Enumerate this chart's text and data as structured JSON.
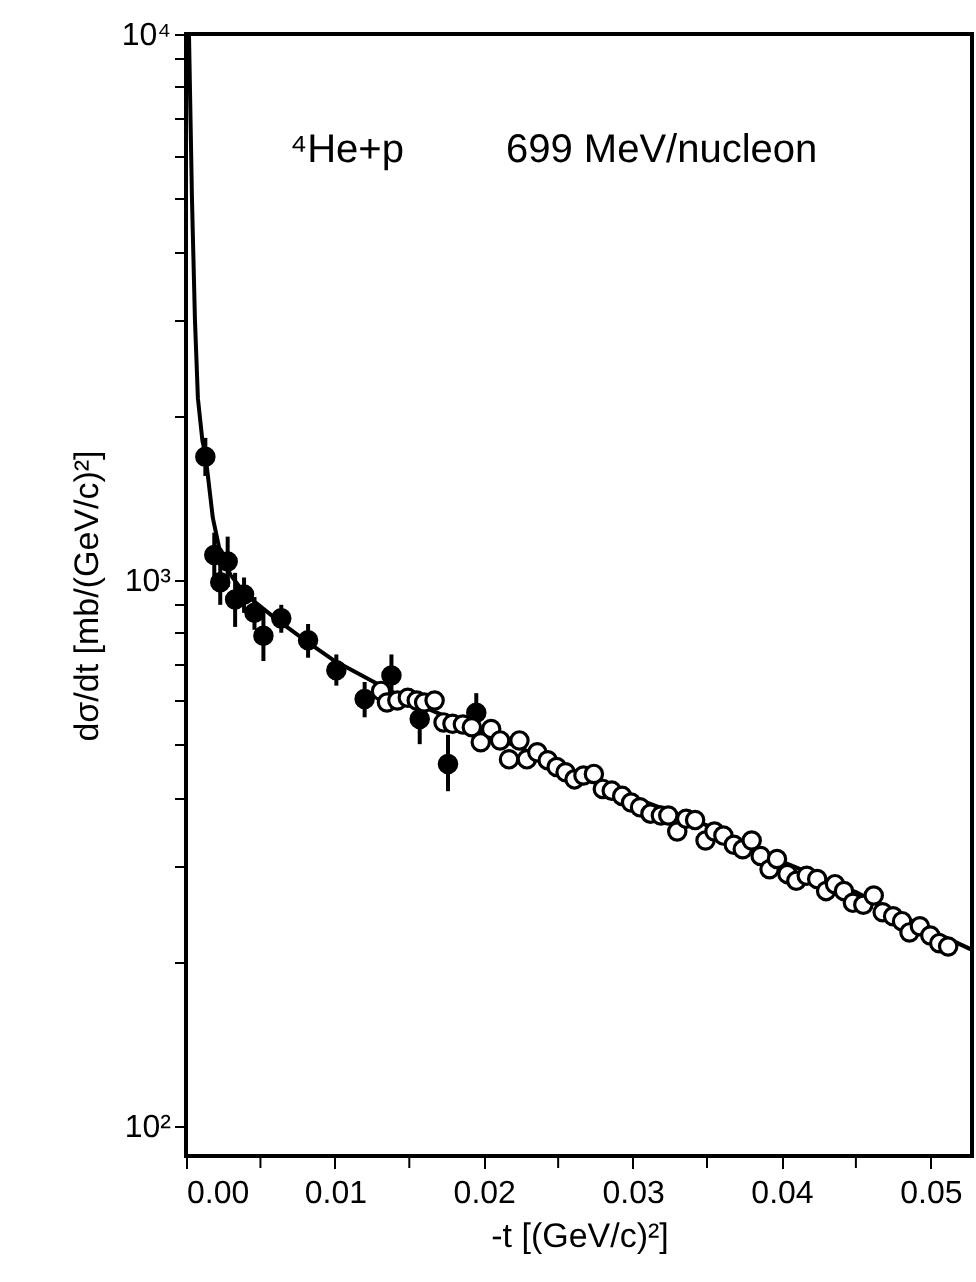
{
  "chart_data": {
    "type": "scatter",
    "xlabel": "-t  [(GeV/c)²]",
    "ylabel": "dσ/dt  [mb/(GeV/c)²]",
    "annotations": [
      "⁴He+p",
      "699 MeV/nucleon"
    ],
    "xlim": [
      0,
      0.0528
    ],
    "ylim": [
      88,
      10000
    ],
    "log": "y",
    "xticks": [
      {
        "value": 0,
        "label": "0.00"
      },
      {
        "value": 0.005,
        "label": null
      },
      {
        "value": 0.01,
        "label": "0.01"
      },
      {
        "value": 0.015,
        "label": null
      },
      {
        "value": 0.02,
        "label": "0.02"
      },
      {
        "value": 0.025,
        "label": null
      },
      {
        "value": 0.03,
        "label": "0.03"
      },
      {
        "value": 0.035,
        "label": null
      },
      {
        "value": 0.04,
        "label": "0.04"
      },
      {
        "value": 0.045,
        "label": null
      },
      {
        "value": 0.05,
        "label": "0.05"
      }
    ],
    "yticks": [
      {
        "value": 100,
        "label": "10²"
      },
      {
        "value": 200,
        "label": null
      },
      {
        "value": 300,
        "label": null
      },
      {
        "value": 400,
        "label": null
      },
      {
        "value": 500,
        "label": null
      },
      {
        "value": 600,
        "label": null
      },
      {
        "value": 700,
        "label": null
      },
      {
        "value": 800,
        "label": null
      },
      {
        "value": 900,
        "label": null
      },
      {
        "value": 1000,
        "label": "10³"
      },
      {
        "value": 2000,
        "label": null
      },
      {
        "value": 3000,
        "label": null
      },
      {
        "value": 4000,
        "label": null
      },
      {
        "value": 5000,
        "label": null
      },
      {
        "value": 6000,
        "label": null
      },
      {
        "value": 7000,
        "label": null
      },
      {
        "value": 8000,
        "label": null
      },
      {
        "value": 9000,
        "label": null
      },
      {
        "value": 10000,
        "label": "10⁴"
      }
    ],
    "series": [
      {
        "type": "line",
        "color": "#000000",
        "x": [
          0.0002,
          0.0004,
          0.0006,
          0.0008,
          0.0011,
          0.0013,
          0.0018,
          0.0023,
          0.003,
          0.004,
          0.006,
          0.008,
          0.01,
          0.015,
          0.02,
          0.025,
          0.03,
          0.035,
          0.04,
          0.045,
          0.05,
          0.0528
        ],
        "values": [
          10000,
          5000,
          3000,
          2150,
          1800,
          1700,
          1300,
          1120,
          1020,
          940,
          850,
          775,
          710,
          600,
          525,
          460,
          400,
          355,
          305,
          268,
          228,
          210
        ]
      },
      {
        "type": "scatter",
        "marker": "circle",
        "color": "#000000",
        "x": [
          0.0013,
          0.0019,
          0.0023,
          0.0028,
          0.0033,
          0.0039,
          0.0046,
          0.0052,
          0.0064,
          0.0082,
          0.0101,
          0.012,
          0.0138,
          0.0157,
          0.0176,
          0.0195
        ],
        "values": [
          1680,
          1110,
          990,
          1080,
          920,
          940,
          870,
          790,
          850,
          775,
          683,
          605,
          668,
          556,
          460,
          571
        ],
        "errors": [
          [
            1550,
            1820
          ],
          [
            1010,
            1220
          ],
          [
            900,
            1090
          ],
          [
            970,
            1200
          ],
          [
            820,
            1030
          ],
          [
            870,
            1010
          ],
          [
            810,
            930
          ],
          [
            710,
            880
          ],
          [
            800,
            900
          ],
          [
            720,
            830
          ],
          [
            640,
            730
          ],
          [
            560,
            650
          ],
          [
            610,
            730
          ],
          [
            500,
            620
          ],
          [
            410,
            520
          ],
          [
            520,
            620
          ]
        ]
      },
      {
        "type": "scatter",
        "marker": "circle",
        "color": "#ffffff",
        "x": [
          0.0131,
          0.0135,
          0.0142,
          0.0149,
          0.0155,
          0.016,
          0.0167,
          0.0173,
          0.0179,
          0.0186,
          0.0192,
          0.0198,
          0.0205,
          0.0211,
          0.0217,
          0.0224,
          0.0229,
          0.0236,
          0.0243,
          0.0249,
          0.0255,
          0.0261,
          0.0267,
          0.0274,
          0.028,
          0.0286,
          0.0293,
          0.0299,
          0.0305,
          0.0312,
          0.0319,
          0.0324,
          0.033,
          0.0336,
          0.0342,
          0.0349,
          0.0355,
          0.0361,
          0.0368,
          0.0374,
          0.038,
          0.0386,
          0.0392,
          0.0397,
          0.0404,
          0.041,
          0.0417,
          0.0424,
          0.043,
          0.0436,
          0.0442,
          0.0448,
          0.0455,
          0.0462,
          0.0468,
          0.0475,
          0.0481,
          0.0486,
          0.0493,
          0.05,
          0.0506,
          0.0512
        ],
        "values": [
          626,
          596,
          601,
          608,
          601,
          596,
          601,
          548,
          545,
          543,
          537,
          504,
          533,
          508,
          469,
          508,
          469,
          483,
          467,
          454,
          444,
          431,
          438,
          441,
          414,
          411,
          402,
          391,
          383,
          373,
          370,
          370,
          346,
          365,
          363,
          333,
          346,
          340,
          327,
          321,
          333,
          312,
          295,
          308,
          289,
          281,
          287,
          283,
          269,
          277,
          269,
          256,
          254,
          264,
          246,
          242,
          237,
          226,
          232,
          223,
          216,
          213
        ]
      }
    ]
  }
}
